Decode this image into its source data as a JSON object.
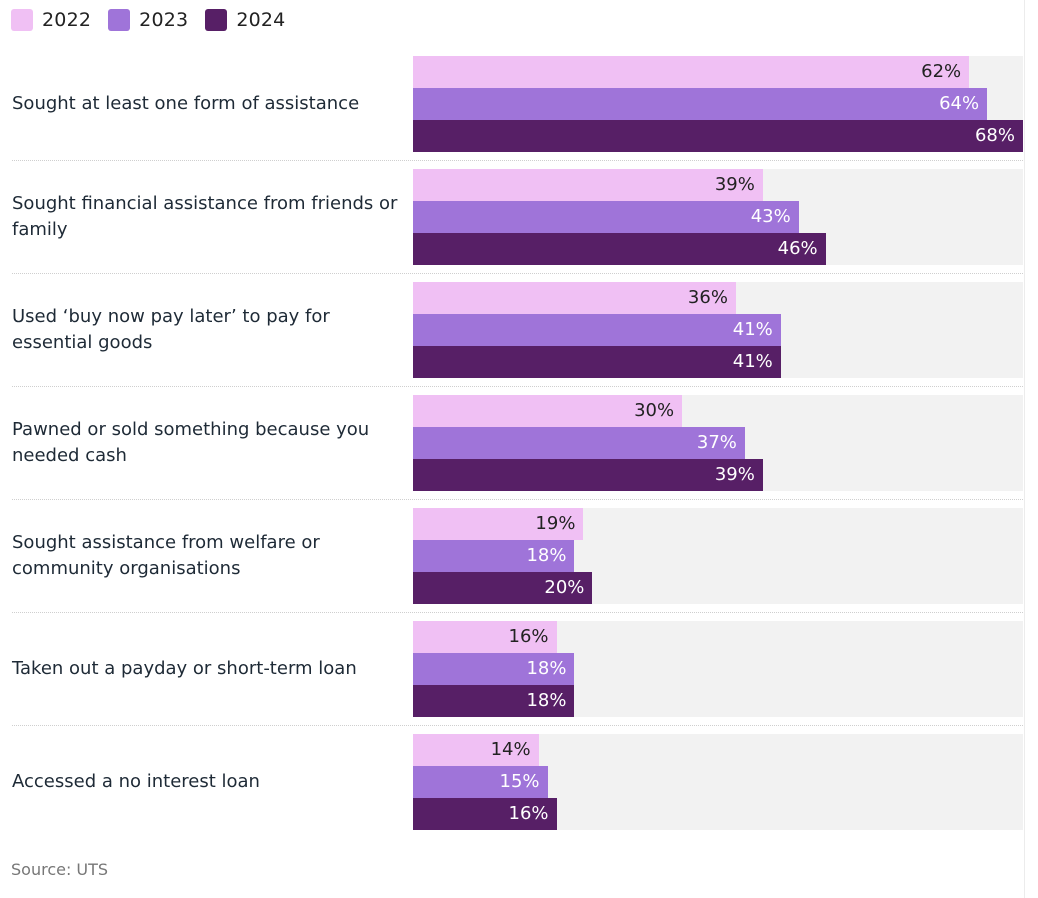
{
  "chart_data": {
    "type": "bar",
    "orientation": "horizontal",
    "title": "",
    "xlabel": "",
    "ylabel": "",
    "xlim": [
      0,
      68
    ],
    "value_suffix": "%",
    "categories": [
      "Sought at least one form of assistance",
      "Sought financial assistance from friends or family",
      "Used ‘buy now pay later’ to pay for essential goods",
      "Pawned or sold something because you needed cash",
      "Sought assistance from welfare or community organisations",
      "Taken out a payday or short-term loan",
      "Accessed a no interest loan"
    ],
    "series": [
      {
        "name": "2022",
        "color": "#f0c0f4",
        "label_color": "#222222",
        "values": [
          62,
          39,
          36,
          30,
          19,
          16,
          14
        ]
      },
      {
        "name": "2023",
        "color": "#9f74d9",
        "label_color": "#ffffff",
        "values": [
          64,
          43,
          41,
          37,
          18,
          18,
          15
        ]
      },
      {
        "name": "2024",
        "color": "#571f66",
        "label_color": "#ffffff",
        "values": [
          68,
          46,
          41,
          39,
          20,
          18,
          16
        ]
      }
    ],
    "legend": "top-left",
    "source": "Source: UTS"
  }
}
